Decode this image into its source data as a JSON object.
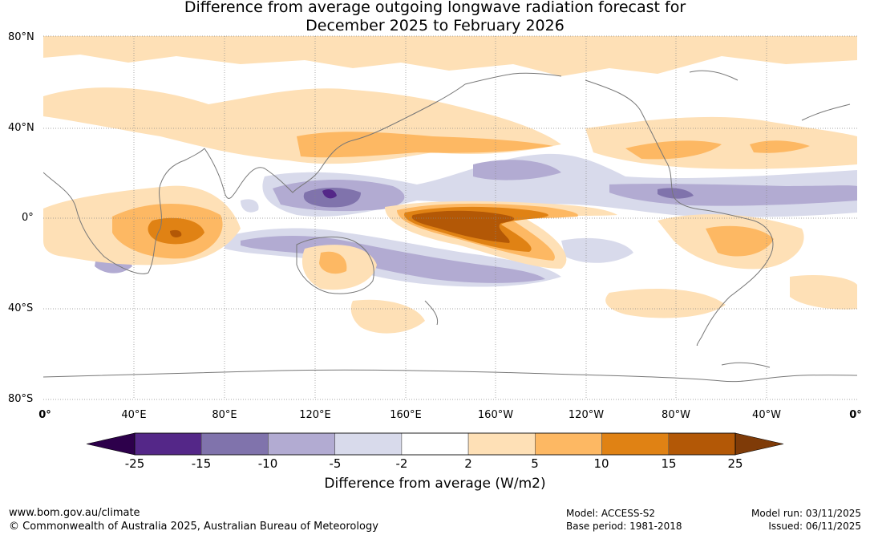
{
  "title": {
    "line1": "Difference from average outgoing longwave radiation forecast for",
    "line2": "December 2025 to February 2026"
  },
  "map": {
    "lat_labels": [
      "80°N",
      "40°N",
      "0°",
      "40°S",
      "80°S"
    ],
    "lon_labels": [
      "0°",
      "40°E",
      "80°E",
      "120°E",
      "160°E",
      "160°W",
      "120°W",
      "80°W",
      "40°W",
      "0°"
    ],
    "regions": [
      {
        "name": "central-pacific-positive-anomaly",
        "category": "15 to 25",
        "color": "#b35806"
      },
      {
        "name": "central-pacific-moderate-positive",
        "category": "10 to 15",
        "color": "#e08214"
      },
      {
        "name": "west-pacific-negative-anomaly",
        "category": "-15 to -10",
        "color": "#8073ac"
      },
      {
        "name": "maritime-continent-negative",
        "category": "-10 to -5",
        "color": "#b2abd2"
      },
      {
        "name": "indian-ocean-positive-anomaly",
        "category": "10 to 15",
        "color": "#e08214"
      },
      {
        "name": "south-pacific-negative-band",
        "category": "-10 to -5",
        "color": "#b2abd2"
      },
      {
        "name": "philippines-strong-negative",
        "category": "-25 to -15",
        "color": "#542788"
      }
    ]
  },
  "colorbar": {
    "ticks": [
      "-25",
      "-15",
      "-10",
      "-5",
      "-2",
      "2",
      "5",
      "10",
      "15",
      "25"
    ],
    "bins": [
      {
        "range": "-25 to -15",
        "color": "#542788"
      },
      {
        "range": "-15 to -10",
        "color": "#8073ac"
      },
      {
        "range": "-10 to -5",
        "color": "#b2abd2"
      },
      {
        "range": "-5 to -2",
        "color": "#d8daeb"
      },
      {
        "range": "-2 to 2",
        "color": "#ffffff"
      },
      {
        "range": "2 to 5",
        "color": "#fee0b6"
      },
      {
        "range": "5 to 10",
        "color": "#fdb863"
      },
      {
        "range": "10 to 15",
        "color": "#e08214"
      },
      {
        "range": "15 to 25",
        "color": "#b35806"
      }
    ],
    "under_color": "#2d004b",
    "over_color": "#7f3b08",
    "title": "Difference from average (W/m2)"
  },
  "footer": {
    "url": "www.bom.gov.au/climate",
    "copyright": "© Commonwealth of Australia 2025, Australian Bureau of Meteorology",
    "model": "Model: ACCESS-S2",
    "base_period": "Base period: 1981-2018",
    "model_run": "Model run: 03/11/2025",
    "issued": "Issued: 06/11/2025"
  }
}
